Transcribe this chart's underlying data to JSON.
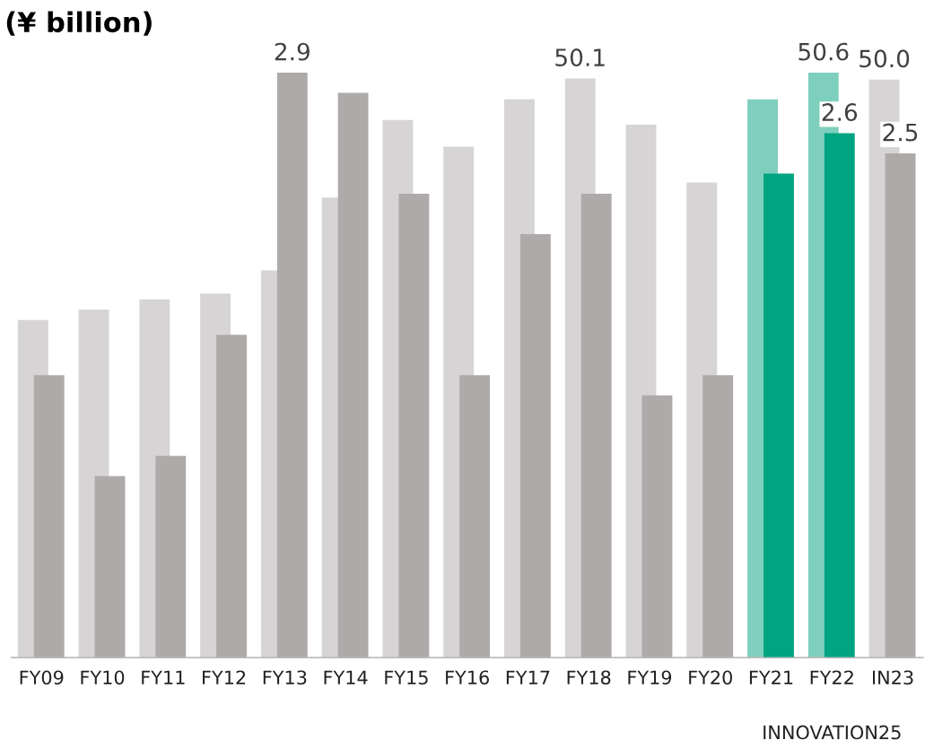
{
  "chart_data": {
    "type": "bar",
    "title": "(¥ billion)",
    "categories": [
      "FY09",
      "FY10",
      "FY11",
      "FY12",
      "FY13",
      "FY14",
      "FY15",
      "FY16",
      "FY17",
      "FY18",
      "FY19",
      "FY20",
      "FY21",
      "FY22",
      "IN23"
    ],
    "series": [
      {
        "colors": [
          "#d6d4d5",
          "#d6d4d5",
          "#d6d4d5",
          "#d6d4d5",
          "#d6d4d5",
          "#d6d4d5",
          "#d6d4d5",
          "#d6d4d5",
          "#d6d4d5",
          "#d6d4d5",
          "#d6d4d5",
          "#d6d4d5",
          "#7fcfbe",
          "#7fcfbe",
          "#d6d4d5"
        ],
        "values": [
          29.2,
          30.1,
          31.0,
          31.5,
          33.5,
          39.8,
          46.5,
          44.2,
          48.3,
          50.1,
          46.1,
          41.1,
          48.3,
          50.6,
          50.0
        ],
        "value_labels": [
          null,
          null,
          null,
          null,
          null,
          null,
          null,
          null,
          null,
          "50.1",
          null,
          null,
          null,
          "50.6",
          "50.0"
        ]
      },
      {
        "axis": "y2",
        "colors": [
          "#aeaaa9",
          "#aeaaa9",
          "#aeaaa9",
          "#aeaaa9",
          "#aeaaa9",
          "#aeaaa9",
          "#aeaaa9",
          "#aeaaa9",
          "#aeaaa9",
          "#aeaaa9",
          "#aeaaa9",
          "#aeaaa9",
          "#00a480",
          "#00a480",
          "#aeaaa9"
        ],
        "values": [
          1.4,
          0.9,
          1.0,
          1.6,
          2.9,
          2.8,
          2.3,
          1.4,
          2.1,
          2.3,
          1.3,
          1.4,
          2.4,
          2.6,
          2.5
        ],
        "value_labels": [
          null,
          null,
          null,
          null,
          "2.9",
          null,
          null,
          null,
          null,
          null,
          null,
          null,
          null,
          "2.6",
          "2.5"
        ]
      }
    ],
    "tick_labels": "x",
    "annotations": [
      "INNOVATION25"
    ]
  }
}
